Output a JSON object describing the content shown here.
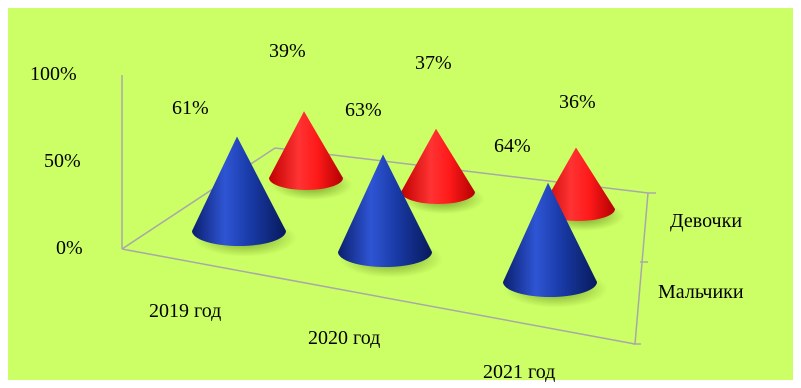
{
  "chart_data": {
    "type": "bar",
    "bar_shape": "cone-3d",
    "categories": [
      "2019 год",
      "2020 год",
      "2021 год"
    ],
    "series": [
      {
        "name": "Мальчики",
        "values": [
          61,
          63,
          64
        ],
        "color": "#1a3caa"
      },
      {
        "name": "Девочки",
        "values": [
          39,
          37,
          36
        ],
        "color": "#ff1a1a"
      }
    ],
    "data_labels": {
      "Мальчики": [
        "61%",
        "63%",
        "64%"
      ],
      "Девочки": [
        "39%",
        "37%",
        "36%"
      ]
    },
    "z_axis_labels": [
      "Девочки",
      "Мальчики"
    ],
    "y_ticks": [
      "0%",
      "50%",
      "100%"
    ],
    "ylim": [
      0,
      100
    ],
    "background_color": "#ccff66"
  }
}
